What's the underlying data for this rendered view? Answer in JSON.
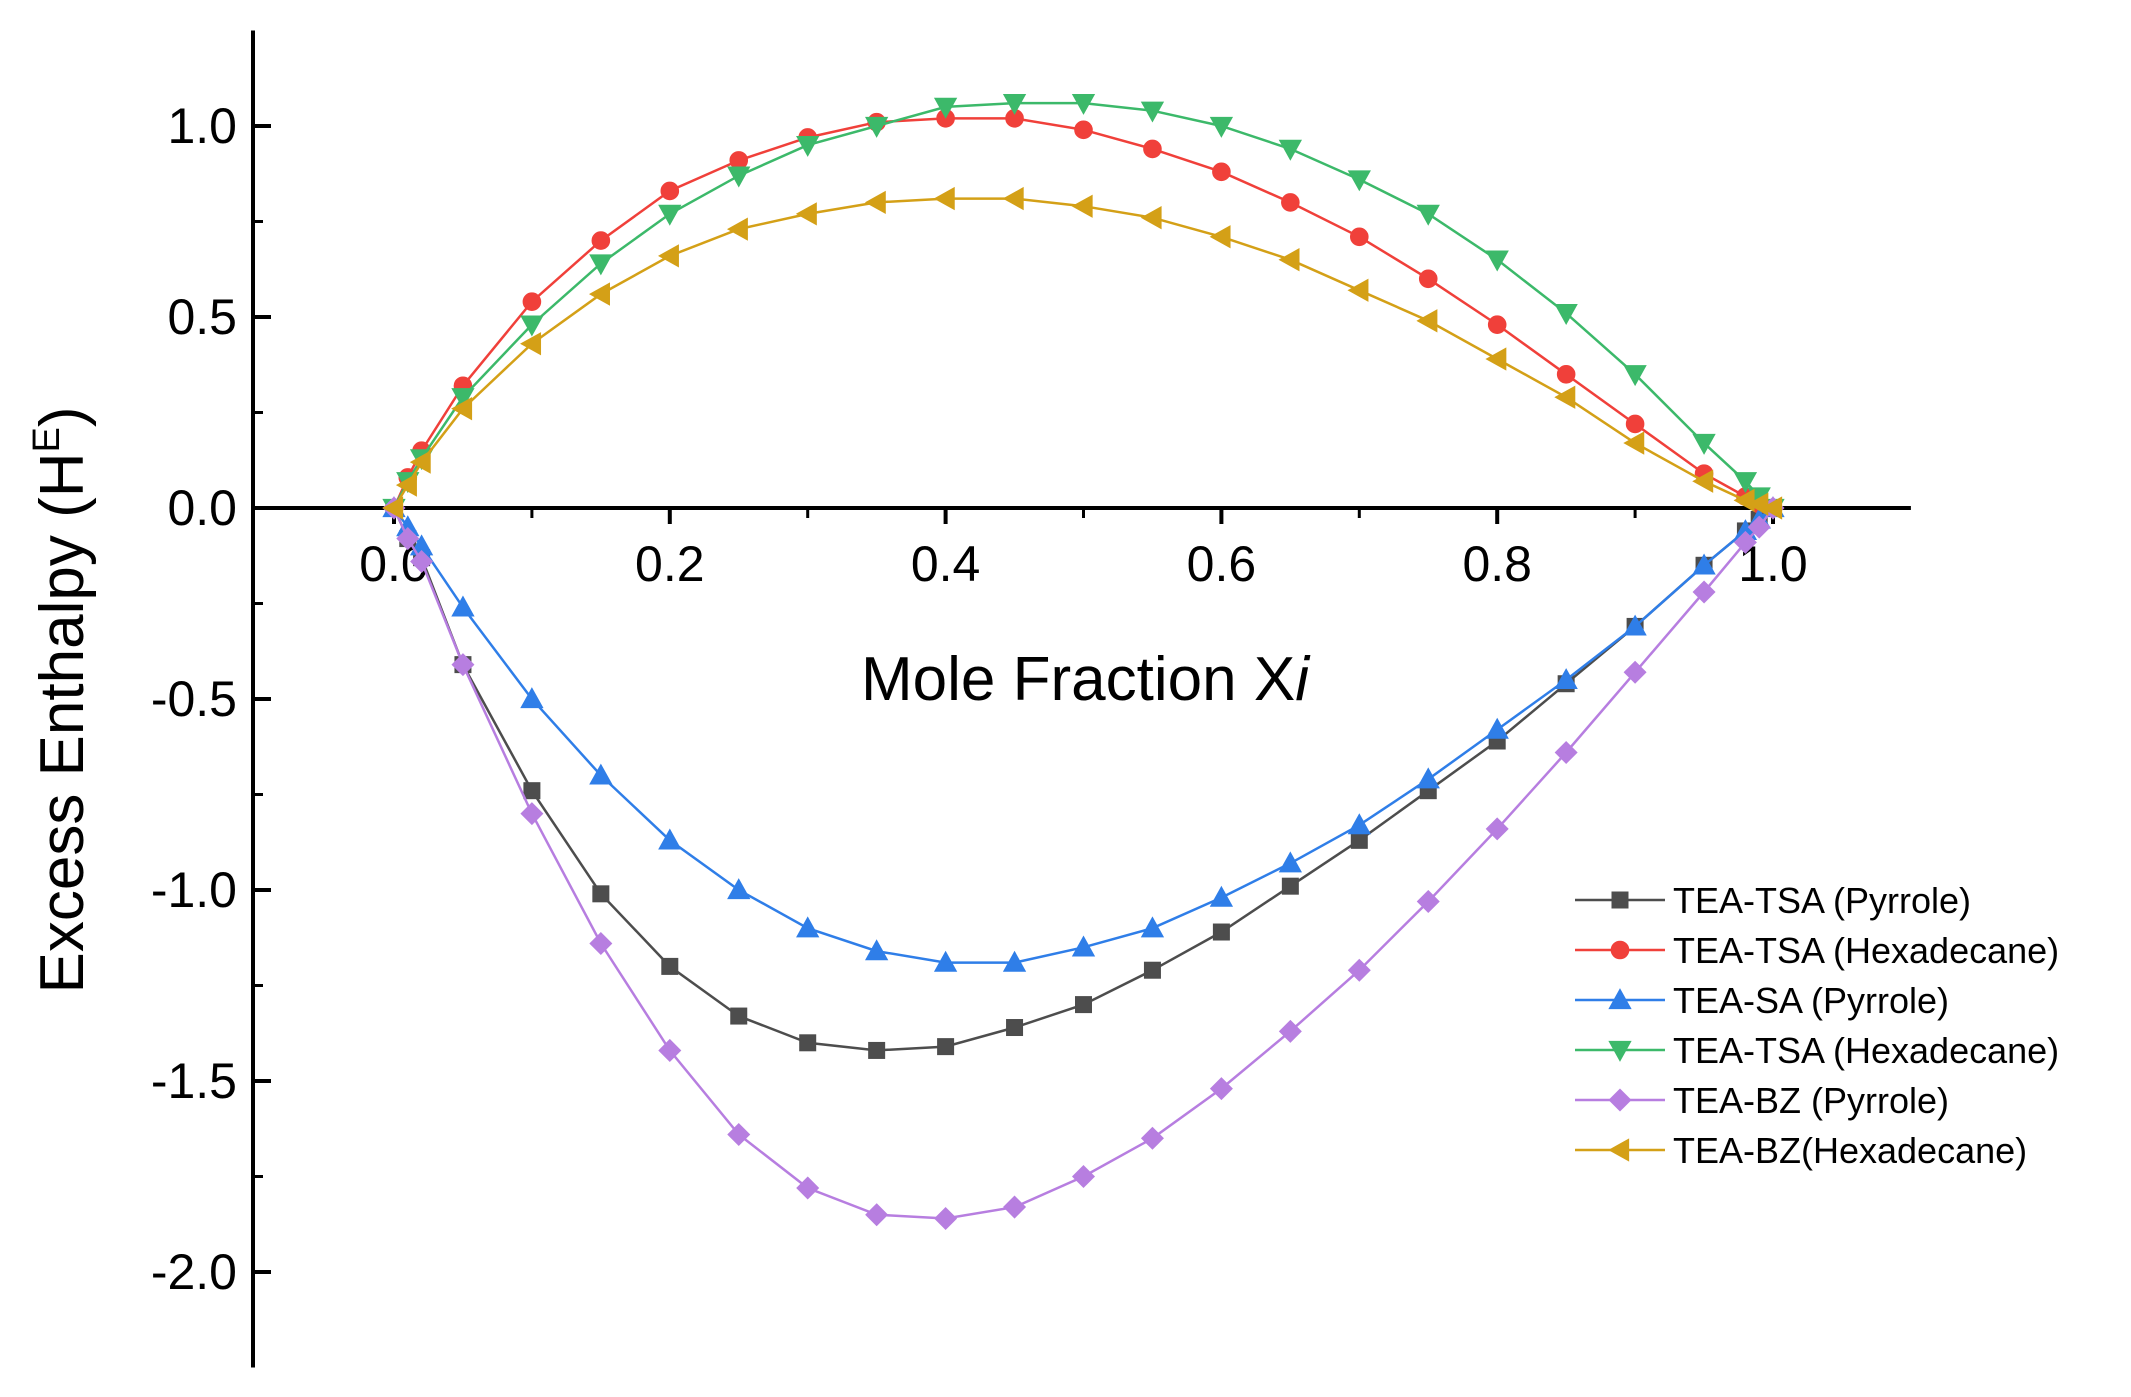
{
  "chart_data": {
    "type": "line",
    "title": "",
    "xlabel": "Mole Fraction Xi",
    "xlabel_main": "Mole Fraction X",
    "xlabel_italic": "i",
    "ylabel": "Excess Enthalpy (HE)",
    "ylabel_main": "Excess Enthalpy (H",
    "ylabel_sup": "E",
    "ylabel_close": ")",
    "xlim": [
      -0.1,
      1.1
    ],
    "ylim": [
      -2.25,
      1.25
    ],
    "xticks": [
      0.0,
      0.2,
      0.4,
      0.6,
      0.8,
      1.0
    ],
    "xtick_labels": [
      "0.0",
      "0.2",
      "0.4",
      "0.6",
      "0.8",
      "1.0"
    ],
    "yticks": [
      1.0,
      0.5,
      0.0,
      -0.5,
      -1.0,
      -1.5,
      -2.0
    ],
    "ytick_labels": [
      "1.0",
      "0.5",
      "0.0",
      "-0.5",
      "-1.0",
      "-1.5",
      "-2.0"
    ],
    "grid": false,
    "legend_position": "right",
    "series": [
      {
        "name": "TEA-TSA (Pyrrole)",
        "color": "#4d4d4d",
        "marker": "square",
        "x": [
          0.0,
          0.01,
          0.02,
          0.05,
          0.1,
          0.15,
          0.2,
          0.25,
          0.3,
          0.35,
          0.4,
          0.45,
          0.5,
          0.55,
          0.6,
          0.65,
          0.7,
          0.75,
          0.8,
          0.85,
          0.9,
          0.95,
          0.98,
          0.99,
          1.0
        ],
        "y": [
          0.0,
          -0.08,
          -0.13,
          -0.41,
          -0.74,
          -1.01,
          -1.2,
          -1.33,
          -1.4,
          -1.42,
          -1.41,
          -1.36,
          -1.3,
          -1.21,
          -1.11,
          -0.99,
          -0.87,
          -0.74,
          -0.61,
          -0.46,
          -0.31,
          -0.15,
          -0.06,
          -0.03,
          0.0
        ]
      },
      {
        "name": "TEA-TSA (Hexadecane)",
        "color": "#f0403a",
        "marker": "circle",
        "x": [
          0.0,
          0.01,
          0.02,
          0.05,
          0.1,
          0.15,
          0.2,
          0.25,
          0.3,
          0.35,
          0.4,
          0.45,
          0.5,
          0.55,
          0.6,
          0.65,
          0.7,
          0.75,
          0.8,
          0.85,
          0.9,
          0.95,
          0.98,
          0.99,
          1.0
        ],
        "y": [
          0.0,
          0.08,
          0.15,
          0.32,
          0.54,
          0.7,
          0.83,
          0.91,
          0.97,
          1.01,
          1.02,
          1.02,
          0.99,
          0.94,
          0.88,
          0.8,
          0.71,
          0.6,
          0.48,
          0.35,
          0.22,
          0.09,
          0.03,
          0.01,
          0.0
        ]
      },
      {
        "name": "TEA-SA (Pyrrole)",
        "color": "#2f7ee8",
        "marker": "triangle-up",
        "x": [
          0.0,
          0.01,
          0.02,
          0.05,
          0.1,
          0.15,
          0.2,
          0.25,
          0.3,
          0.35,
          0.4,
          0.45,
          0.5,
          0.55,
          0.6,
          0.65,
          0.7,
          0.75,
          0.8,
          0.85,
          0.9,
          0.95,
          0.98,
          0.99,
          1.0
        ],
        "y": [
          0.0,
          -0.05,
          -0.1,
          -0.26,
          -0.5,
          -0.7,
          -0.87,
          -1.0,
          -1.1,
          -1.16,
          -1.19,
          -1.19,
          -1.15,
          -1.1,
          -1.02,
          -0.93,
          -0.83,
          -0.71,
          -0.58,
          -0.45,
          -0.31,
          -0.15,
          -0.06,
          -0.03,
          0.0
        ]
      },
      {
        "name": "TEA-TSA (Hexadecane)",
        "color": "#3cb96a",
        "marker": "triangle-down",
        "x": [
          0.0,
          0.01,
          0.02,
          0.05,
          0.1,
          0.15,
          0.2,
          0.25,
          0.3,
          0.35,
          0.4,
          0.45,
          0.5,
          0.55,
          0.6,
          0.65,
          0.7,
          0.75,
          0.8,
          0.85,
          0.9,
          0.95,
          0.98,
          0.99,
          1.0
        ],
        "y": [
          0.0,
          0.07,
          0.13,
          0.29,
          0.48,
          0.64,
          0.77,
          0.87,
          0.95,
          1.0,
          1.05,
          1.06,
          1.06,
          1.04,
          1.0,
          0.94,
          0.86,
          0.77,
          0.65,
          0.51,
          0.35,
          0.17,
          0.07,
          0.03,
          0.0
        ]
      },
      {
        "name": "TEA-BZ (Pyrrole)",
        "color": "#b77ee0",
        "marker": "diamond",
        "x": [
          0.0,
          0.01,
          0.02,
          0.05,
          0.1,
          0.15,
          0.2,
          0.25,
          0.3,
          0.35,
          0.4,
          0.45,
          0.5,
          0.55,
          0.6,
          0.65,
          0.7,
          0.75,
          0.8,
          0.85,
          0.9,
          0.95,
          0.98,
          0.99,
          1.0
        ],
        "y": [
          0.0,
          -0.08,
          -0.14,
          -0.41,
          -0.8,
          -1.14,
          -1.42,
          -1.64,
          -1.78,
          -1.85,
          -1.86,
          -1.83,
          -1.75,
          -1.65,
          -1.52,
          -1.37,
          -1.21,
          -1.03,
          -0.84,
          -0.64,
          -0.43,
          -0.22,
          -0.09,
          -0.05,
          0.0
        ]
      },
      {
        "name": "TEA-BZ(Hexadecane)",
        "color": "#d4a017",
        "marker": "triangle-left",
        "x": [
          0.0,
          0.01,
          0.02,
          0.05,
          0.1,
          0.15,
          0.2,
          0.25,
          0.3,
          0.35,
          0.4,
          0.45,
          0.5,
          0.55,
          0.6,
          0.65,
          0.7,
          0.75,
          0.8,
          0.85,
          0.9,
          0.95,
          0.98,
          0.99,
          1.0
        ],
        "y": [
          0.0,
          0.06,
          0.12,
          0.26,
          0.43,
          0.56,
          0.66,
          0.73,
          0.77,
          0.8,
          0.81,
          0.81,
          0.79,
          0.76,
          0.71,
          0.65,
          0.57,
          0.49,
          0.39,
          0.29,
          0.17,
          0.07,
          0.02,
          0.01,
          0.0
        ]
      }
    ]
  }
}
